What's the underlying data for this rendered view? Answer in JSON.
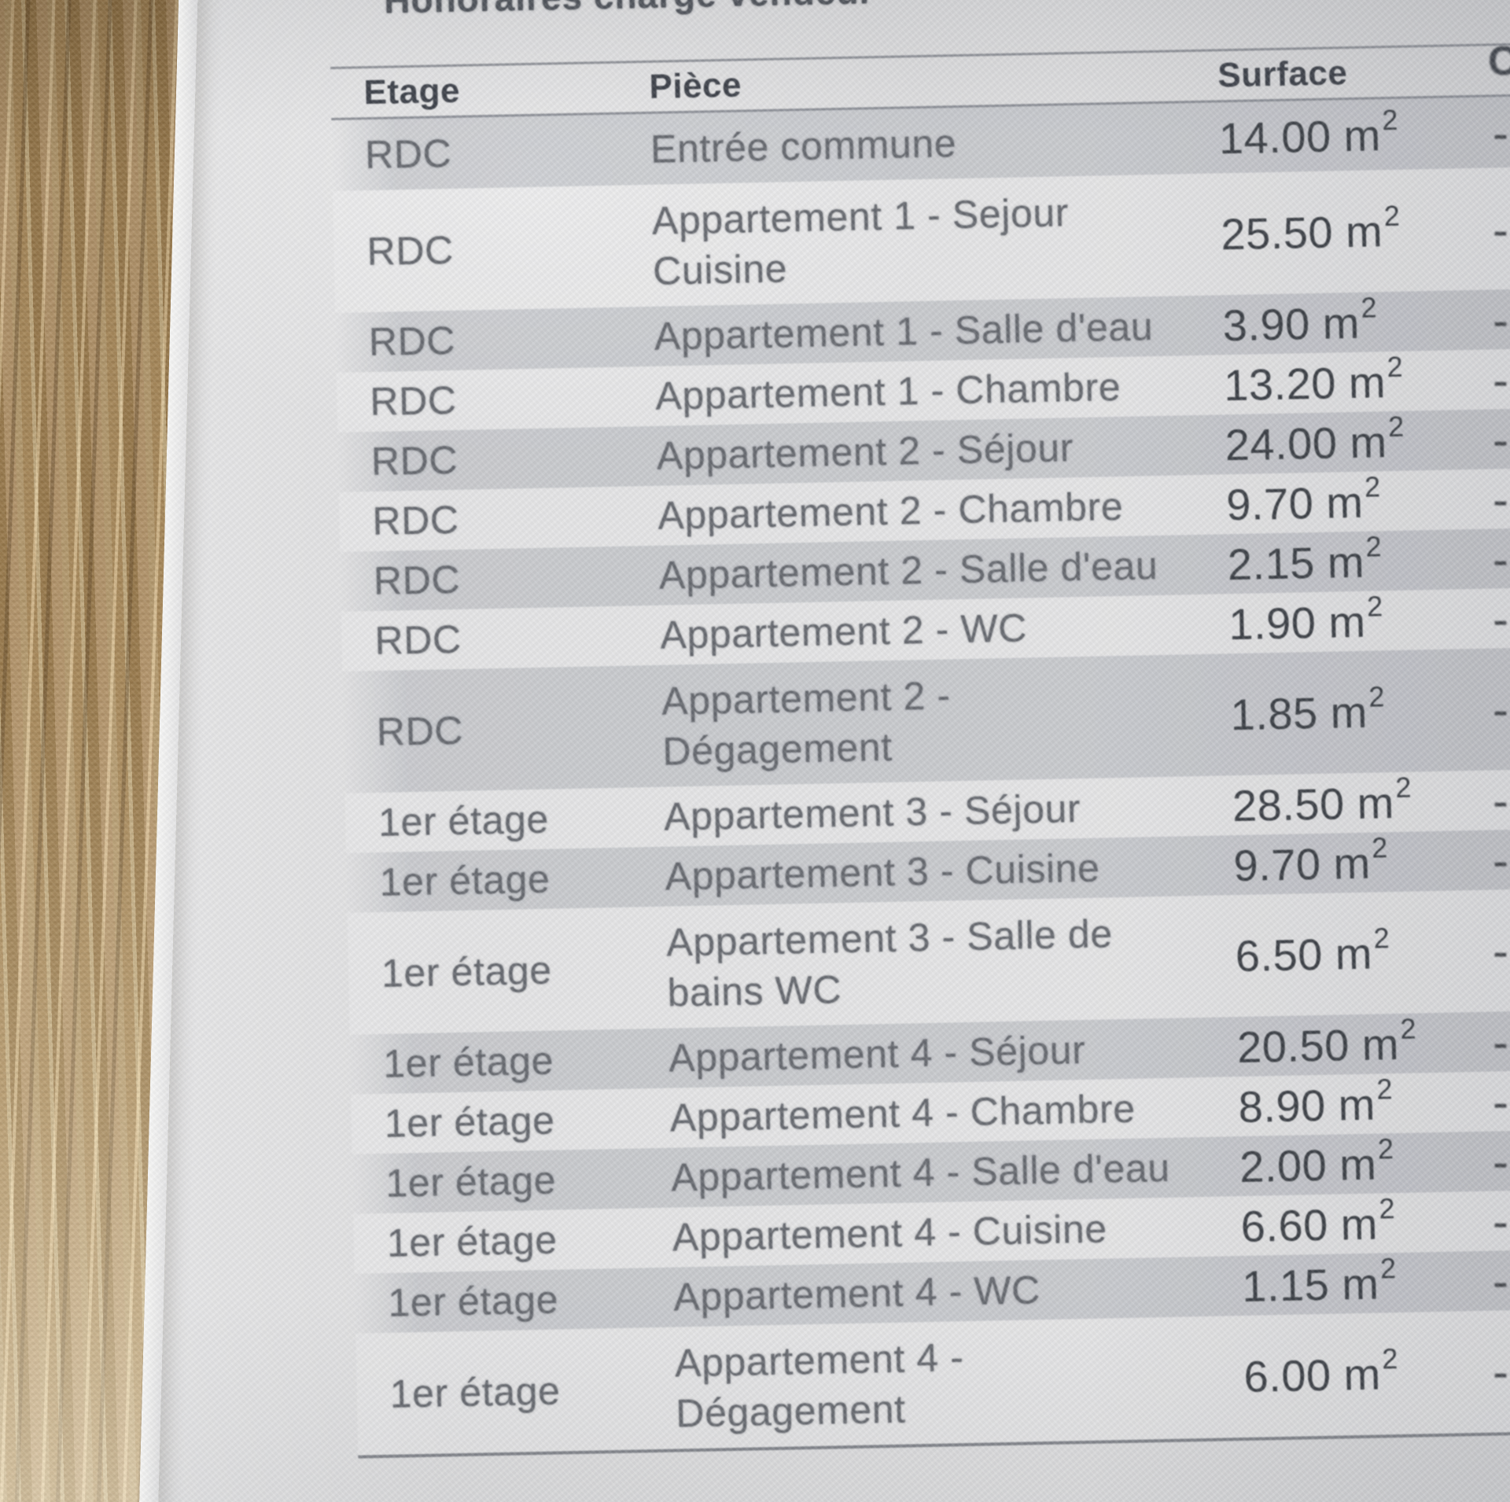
{
  "colors": {
    "paper": "#dfdfe0",
    "row_band": "#c7c9cd",
    "wood_base": "#ab8c60",
    "text_muted": "#66696f",
    "text_dark": "#3c4046",
    "table_line": "#7a7e86"
  },
  "photo": {
    "document_title_partial": "Honoraires charge vendeur",
    "table": {
      "headers": {
        "etage": "Etage",
        "piece": "Pièce",
        "surface": "Surface",
        "right_column_partial": "C"
      },
      "surface_unit": "m",
      "surface_exponent": "2",
      "rows": [
        {
          "etage": "RDC",
          "piece_lines": [
            "Entrée commune"
          ],
          "surface_value": "14.00",
          "right_partial": "-"
        },
        {
          "etage": "RDC",
          "piece_lines": [
            "Appartement 1 - Sejour",
            "Cuisine"
          ],
          "surface_value": "25.50",
          "right_partial": "-"
        },
        {
          "etage": "RDC",
          "piece_lines": [
            "Appartement 1 - Salle d'eau"
          ],
          "surface_value": "3.90",
          "right_partial": "-"
        },
        {
          "etage": "RDC",
          "piece_lines": [
            "Appartement 1 - Chambre"
          ],
          "surface_value": "13.20",
          "right_partial": "-"
        },
        {
          "etage": "RDC",
          "piece_lines": [
            "Appartement 2 - Séjour"
          ],
          "surface_value": "24.00",
          "right_partial": "-"
        },
        {
          "etage": "RDC",
          "piece_lines": [
            "Appartement 2 - Chambre"
          ],
          "surface_value": "9.70",
          "right_partial": "-"
        },
        {
          "etage": "RDC",
          "piece_lines": [
            "Appartement 2 - Salle d'eau"
          ],
          "surface_value": "2.15",
          "right_partial": "-"
        },
        {
          "etage": "RDC",
          "piece_lines": [
            "Appartement 2 - WC"
          ],
          "surface_value": "1.90",
          "right_partial": "-"
        },
        {
          "etage": "RDC",
          "piece_lines": [
            "Appartement 2 -",
            "Dégagement"
          ],
          "surface_value": "1.85",
          "right_partial": "-"
        },
        {
          "etage": "1er étage",
          "piece_lines": [
            "Appartement 3 - Séjour"
          ],
          "surface_value": "28.50",
          "right_partial": "-"
        },
        {
          "etage": "1er étage",
          "piece_lines": [
            "Appartement 3 - Cuisine"
          ],
          "surface_value": "9.70",
          "right_partial": "-"
        },
        {
          "etage": "1er étage",
          "piece_lines": [
            "Appartement 3 - Salle de",
            "bains WC"
          ],
          "surface_value": "6.50",
          "right_partial": "-"
        },
        {
          "etage": "1er étage",
          "piece_lines": [
            "Appartement 4 - Séjour"
          ],
          "surface_value": "20.50",
          "right_partial": "-"
        },
        {
          "etage": "1er étage",
          "piece_lines": [
            "Appartement 4 - Chambre"
          ],
          "surface_value": "8.90",
          "right_partial": "-"
        },
        {
          "etage": "1er étage",
          "piece_lines": [
            "Appartement 4 - Salle d'eau"
          ],
          "surface_value": "2.00",
          "right_partial": "-"
        },
        {
          "etage": "1er étage",
          "piece_lines": [
            "Appartement 4 - Cuisine"
          ],
          "surface_value": "6.60",
          "right_partial": "-"
        },
        {
          "etage": "1er étage",
          "piece_lines": [
            "Appartement 4 - WC"
          ],
          "surface_value": "1.15",
          "right_partial": "-"
        },
        {
          "etage": "1er étage",
          "piece_lines": [
            "Appartement 4 -",
            "Dégagement"
          ],
          "surface_value": "6.00",
          "right_partial": "-"
        }
      ]
    }
  }
}
